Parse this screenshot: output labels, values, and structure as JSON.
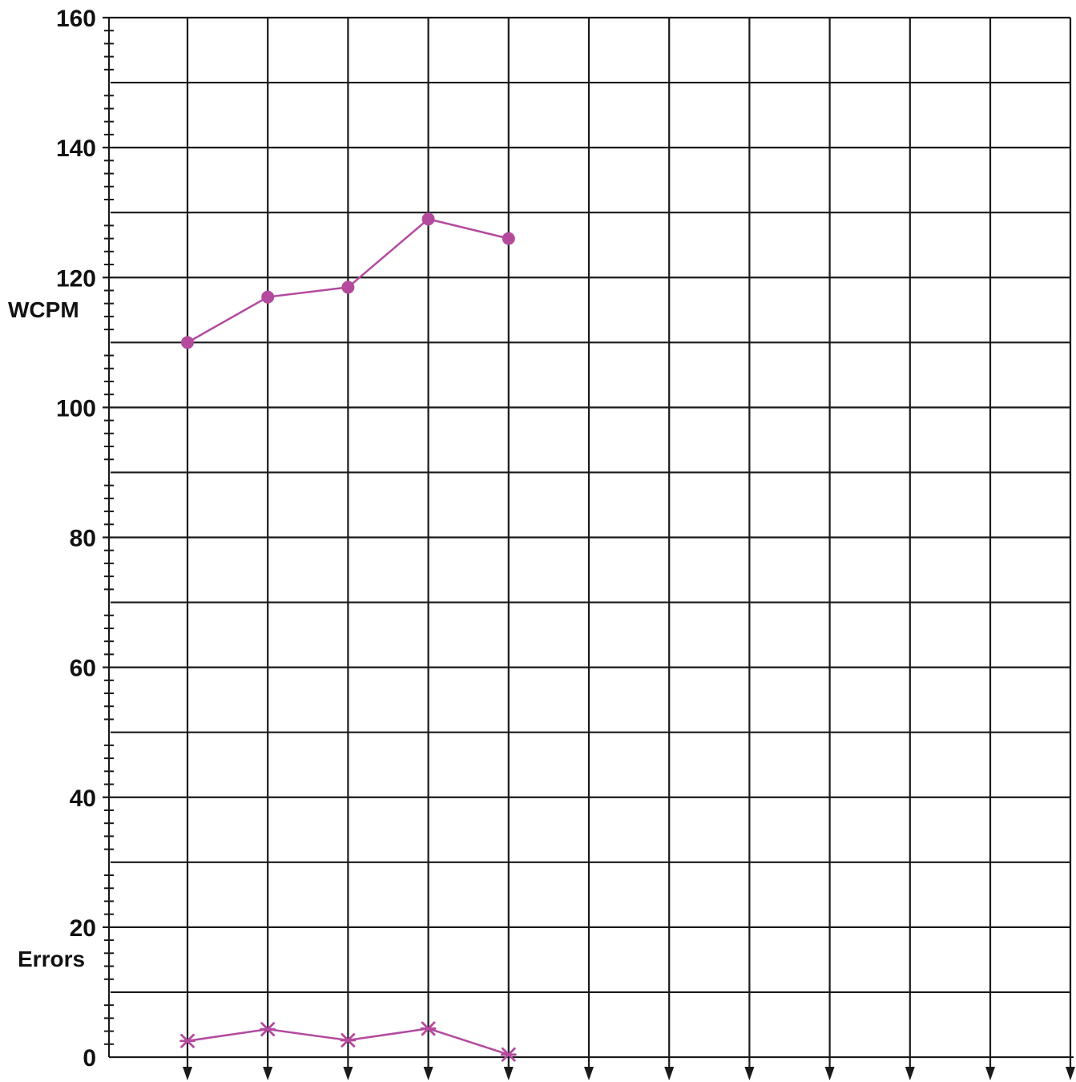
{
  "chart_data": {
    "type": "line",
    "title": "",
    "ylabel": "WCPM",
    "secondary_label": "Errors",
    "ylim": [
      0,
      160
    ],
    "y_ticks": [
      0,
      20,
      40,
      60,
      80,
      100,
      120,
      140,
      160
    ],
    "y_tick_labels": [
      "0",
      "20",
      "40",
      "60",
      "80",
      "100",
      "120",
      "140",
      "160"
    ],
    "y_grid_step": 10,
    "y_minor_step": 2,
    "x_positions": 12,
    "grid": true,
    "x_arrows": true,
    "series": [
      {
        "id": "wcpm",
        "marker": "circle",
        "x": [
          1,
          2,
          3,
          4,
          5
        ],
        "values": [
          110,
          117,
          118.5,
          129,
          126
        ]
      },
      {
        "id": "errors",
        "marker": "x",
        "x": [
          1,
          2,
          3,
          4,
          5
        ],
        "values": [
          2.5,
          4.3,
          2.6,
          4.4,
          0.4
        ]
      }
    ],
    "colors": {
      "series": "#b44a9e",
      "grid": "#1a1a1a",
      "text": "#111111"
    }
  }
}
